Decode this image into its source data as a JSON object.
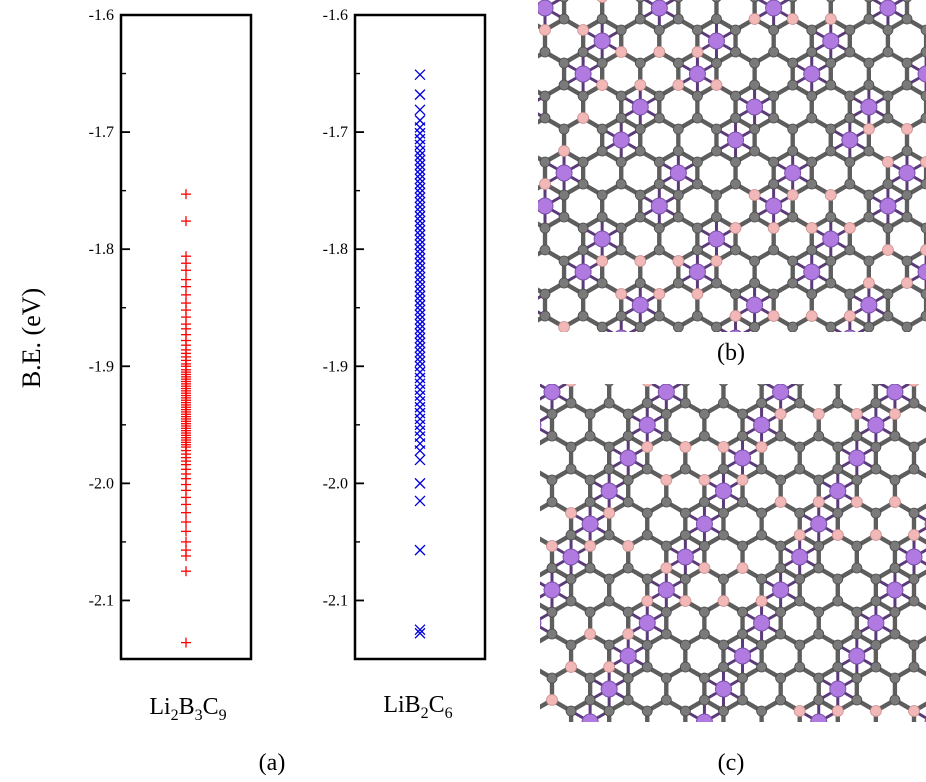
{
  "figure": {
    "ylabel": "B.E. (eV)",
    "panel_labels": {
      "a": "(a)",
      "b": "(b)",
      "c": "(c)"
    }
  },
  "chart_data": [
    {
      "type": "scatter",
      "xlabel": {
        "base1": "Li",
        "sub1": "2",
        "base2": "B",
        "sub2": "3",
        "base3": "C",
        "sub3": "9"
      },
      "ylim": [
        -2.15,
        -1.6
      ],
      "yticks": [
        "-1.6",
        "-1.7",
        "-1.8",
        "-1.9",
        "-2.0",
        "-2.1"
      ],
      "marker": "plus",
      "color": "#ff0000",
      "series": [
        {
          "y": [
            -1.753,
            -1.776,
            -1.806,
            -1.812,
            -1.818,
            -1.826,
            -1.832,
            -1.839,
            -1.846,
            -1.852,
            -1.858,
            -1.864,
            -1.868,
            -1.873,
            -1.878,
            -1.882,
            -1.886,
            -1.889,
            -1.892,
            -1.895,
            -1.898,
            -1.9,
            -1.903,
            -1.905,
            -1.907,
            -1.909,
            -1.911,
            -1.913,
            -1.915,
            -1.917,
            -1.919,
            -1.921,
            -1.923,
            -1.925,
            -1.927,
            -1.929,
            -1.931,
            -1.933,
            -1.935,
            -1.937,
            -1.939,
            -1.941,
            -1.943,
            -1.945,
            -1.947,
            -1.949,
            -1.951,
            -1.953,
            -1.955,
            -1.957,
            -1.959,
            -1.961,
            -1.963,
            -1.965,
            -1.967,
            -1.969,
            -1.972,
            -1.975,
            -1.978,
            -1.981,
            -1.984,
            -1.988,
            -1.992,
            -1.996,
            -2.001,
            -2.006,
            -2.012,
            -2.018,
            -2.025,
            -2.033,
            -2.041,
            -2.05,
            -2.057,
            -2.062,
            -2.075,
            -2.136
          ]
        }
      ]
    },
    {
      "type": "scatter",
      "xlabel": {
        "base1": "LiB",
        "sub1": "2",
        "base2": "C",
        "sub2": "6"
      },
      "ylim": [
        -2.15,
        -1.6
      ],
      "yticks": [
        "-1.6",
        "-1.7",
        "-1.8",
        "-1.9",
        "-2.0",
        "-2.1"
      ],
      "marker": "cross",
      "color": "#0000e0",
      "series": [
        {
          "y": [
            -1.651,
            -1.668,
            -1.681,
            -1.69,
            -1.696,
            -1.701,
            -1.706,
            -1.711,
            -1.716,
            -1.72,
            -1.724,
            -1.728,
            -1.732,
            -1.736,
            -1.74,
            -1.744,
            -1.748,
            -1.752,
            -1.756,
            -1.76,
            -1.764,
            -1.768,
            -1.772,
            -1.776,
            -1.78,
            -1.784,
            -1.788,
            -1.792,
            -1.796,
            -1.8,
            -1.804,
            -1.808,
            -1.812,
            -1.816,
            -1.82,
            -1.824,
            -1.828,
            -1.832,
            -1.836,
            -1.84,
            -1.844,
            -1.848,
            -1.852,
            -1.856,
            -1.86,
            -1.864,
            -1.868,
            -1.872,
            -1.876,
            -1.88,
            -1.884,
            -1.888,
            -1.892,
            -1.896,
            -1.9,
            -1.905,
            -1.91,
            -1.915,
            -1.92,
            -1.925,
            -1.93,
            -1.935,
            -1.94,
            -1.945,
            -1.95,
            -1.955,
            -1.96,
            -1.966,
            -1.972,
            -1.98,
            -2.0,
            -2.015,
            -2.057,
            -2.125,
            -2.128
          ]
        }
      ]
    }
  ],
  "structures": {
    "colors": {
      "carbon": "#7a7a7a",
      "boron": "#f2b8b8",
      "lithium": "#b07ae0",
      "lithium_dark": "#5a3a78"
    }
  }
}
